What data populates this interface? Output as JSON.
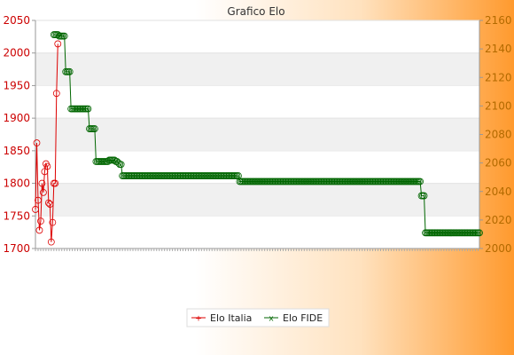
{
  "chart_data": {
    "type": "line",
    "title": "Grafico Elo",
    "xlabel": "",
    "ylabel": "",
    "y_left": {
      "lim": [
        1700,
        2050
      ],
      "ticks": [
        1700,
        1750,
        1800,
        1850,
        1900,
        1950,
        2000,
        2050
      ]
    },
    "y_right": {
      "lim": [
        2000,
        2160
      ],
      "ticks": [
        2000,
        2020,
        2040,
        2060,
        2080,
        2100,
        2120,
        2140,
        2160
      ]
    },
    "grid": "horizontal bands",
    "legend": "bottom-center",
    "series": [
      {
        "name": "Elo Italia",
        "axis": "left",
        "color": "#dd0000",
        "values": [
          1760,
          1862,
          1774,
          1728,
          1742,
          1800,
          1786,
          1818,
          1830,
          1826,
          1770,
          1768,
          1710,
          1740,
          1800,
          1800,
          1938,
          2014
        ]
      },
      {
        "name": "Elo FIDE",
        "axis": "right",
        "color": "#006600",
        "start_index": 14,
        "values": [
          2150,
          2150,
          2150,
          2150,
          2149,
          2149,
          2149,
          2149,
          2149,
          2124,
          2124,
          2124,
          2124,
          2098,
          2098,
          2098,
          2098,
          2098,
          2098,
          2098,
          2098,
          2098,
          2098,
          2098,
          2098,
          2098,
          2098,
          2084,
          2084,
          2084,
          2084,
          2084,
          2061,
          2061,
          2061,
          2061,
          2061,
          2061,
          2061,
          2061,
          2061,
          2061,
          2062,
          2062,
          2062,
          2062,
          2062,
          2061,
          2061,
          2060,
          2059,
          2059,
          2051,
          2051,
          2051,
          2051,
          2051,
          2051,
          2051,
          2051,
          2051,
          2051,
          2051,
          2051,
          2051,
          2051,
          2051,
          2051,
          2051,
          2051,
          2051,
          2051,
          2051,
          2051,
          2051,
          2051,
          2051,
          2051,
          2051,
          2051,
          2051,
          2051,
          2051,
          2051,
          2051,
          2051,
          2051,
          2051,
          2051,
          2051,
          2051,
          2051,
          2051,
          2051,
          2051,
          2051,
          2051,
          2051,
          2051,
          2051,
          2051,
          2051,
          2051,
          2051,
          2051,
          2051,
          2051,
          2051,
          2051,
          2051,
          2051,
          2051,
          2051,
          2051,
          2051,
          2051,
          2051,
          2051,
          2051,
          2051,
          2051,
          2051,
          2051,
          2051,
          2051,
          2051,
          2051,
          2051,
          2051,
          2051,
          2051,
          2051,
          2051,
          2051,
          2051,
          2051,
          2051,
          2051,
          2051,
          2051,
          2051,
          2047,
          2047,
          2047,
          2047,
          2047,
          2047,
          2047,
          2047,
          2047,
          2047,
          2047,
          2047,
          2047,
          2047,
          2047,
          2047,
          2047,
          2047,
          2047,
          2047,
          2047,
          2047,
          2047,
          2047,
          2047,
          2047,
          2047,
          2047,
          2047,
          2047,
          2047,
          2047,
          2047,
          2047,
          2047,
          2047,
          2047,
          2047,
          2047,
          2047,
          2047,
          2047,
          2047,
          2047,
          2047,
          2047,
          2047,
          2047,
          2047,
          2047,
          2047,
          2047,
          2047,
          2047,
          2047,
          2047,
          2047,
          2047,
          2047,
          2047,
          2047,
          2047,
          2047,
          2047,
          2047,
          2047,
          2047,
          2047,
          2047,
          2047,
          2047,
          2047,
          2047,
          2047,
          2047,
          2047,
          2047,
          2047,
          2047,
          2047,
          2047,
          2047,
          2047,
          2047,
          2047,
          2047,
          2047,
          2047,
          2047,
          2047,
          2047,
          2047,
          2047,
          2047,
          2047,
          2047,
          2047,
          2047,
          2047,
          2047,
          2047,
          2047,
          2047,
          2047,
          2047,
          2047,
          2047,
          2047,
          2047,
          2047,
          2047,
          2047,
          2047,
          2047,
          2047,
          2047,
          2047,
          2047,
          2047,
          2047,
          2047,
          2047,
          2047,
          2047,
          2047,
          2047,
          2047,
          2047,
          2047,
          2047,
          2047,
          2047,
          2047,
          2047,
          2047,
          2047,
          2047,
          2047,
          2037,
          2037,
          2037,
          2011,
          2011,
          2011,
          2011,
          2011,
          2011,
          2011,
          2011,
          2011,
          2011,
          2011,
          2011,
          2011,
          2011,
          2011,
          2011,
          2011,
          2011,
          2011,
          2011,
          2011,
          2011,
          2011,
          2011,
          2011,
          2011,
          2011,
          2011,
          2011,
          2011,
          2011,
          2011,
          2011,
          2011,
          2011,
          2011,
          2011,
          2011,
          2011,
          2011,
          2011,
          2011
        ]
      }
    ]
  }
}
